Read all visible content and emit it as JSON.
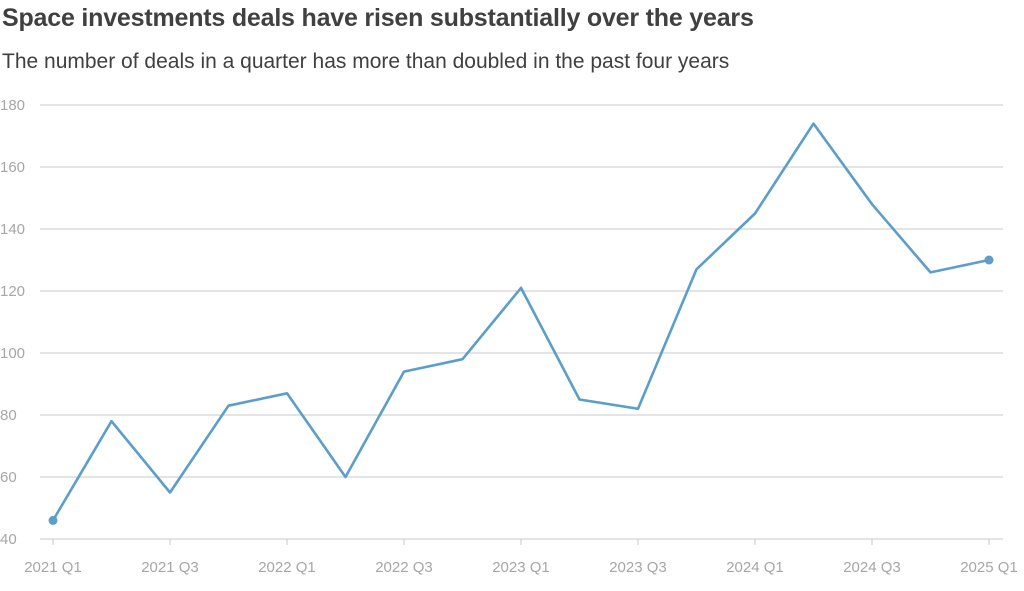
{
  "chart_data": {
    "type": "line",
    "title": "Space investments deals have risen substantially over the years",
    "subtitle": "The number of deals in a quarter has more than doubled in the past four years",
    "xlabel": "",
    "ylabel": "",
    "ylim": [
      40,
      180
    ],
    "yticks": [
      "40",
      "60",
      "80",
      "100",
      "120",
      "140",
      "160",
      "180"
    ],
    "grid": true,
    "legend": "none",
    "line_color": "#5b9ec9",
    "grid_color": "#c8c8c8",
    "categories": [
      "2021 Q1",
      "2021 Q2",
      "2021 Q3",
      "2021 Q4",
      "2022 Q1",
      "2022 Q2",
      "2022 Q3",
      "2022 Q4",
      "2023 Q1",
      "2023 Q2",
      "2023 Q3",
      "2023 Q4",
      "2024 Q1",
      "2024 Q2",
      "2024 Q3",
      "2024 Q4",
      "2025 Q1"
    ],
    "xtick_labels": [
      "2021 Q1",
      "2021 Q3",
      "2022 Q1",
      "2022 Q3",
      "2023 Q1",
      "2023 Q3",
      "2024 Q1",
      "2024 Q3",
      "2025 Q1"
    ],
    "series": [
      {
        "values": [
          46,
          78,
          55,
          83,
          87,
          60,
          94,
          98,
          121,
          85,
          82,
          127,
          145,
          174,
          148,
          126,
          130
        ]
      }
    ]
  }
}
